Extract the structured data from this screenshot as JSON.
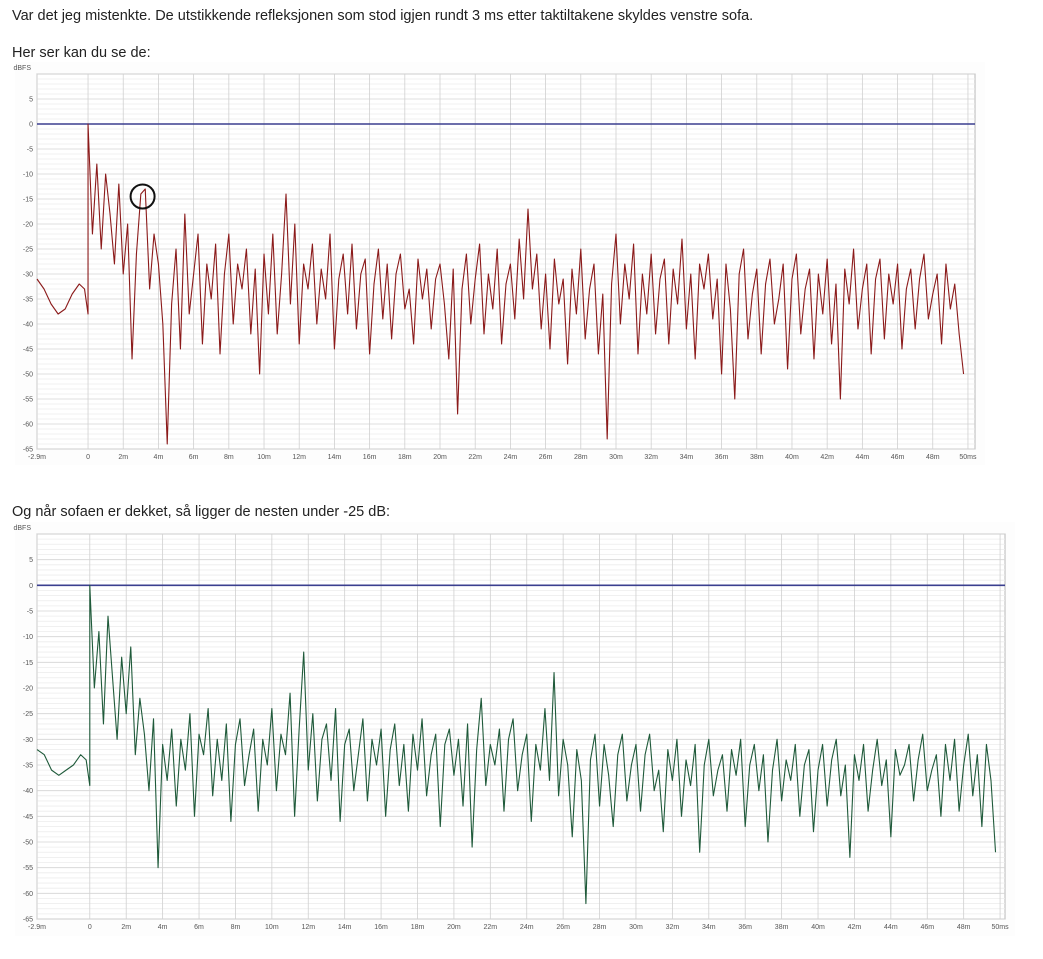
{
  "post": {
    "line1": "Var det jeg mistenkte. De utstikkende refleksjonen som stod igjen rundt 3 ms etter taktiltakene skyldes venstre sofa.",
    "line2": "Her ser kan du se de:",
    "line3": "Og når sofaen er dekket, så ligger de nesten under -25 dB:"
  },
  "chart_data": [
    {
      "type": "line",
      "title": "",
      "ylabel": "dBFS",
      "xlabel": "",
      "xlim": [
        -2.9,
        50.4
      ],
      "ylim": [
        -65,
        10
      ],
      "grid": true,
      "x_tick_labels": [
        "-2.9m",
        "0",
        "2m",
        "4m",
        "6m",
        "8m",
        "10m",
        "12m",
        "14m",
        "16m",
        "18m",
        "20m",
        "22m",
        "24m",
        "26m",
        "28m",
        "30m",
        "32m",
        "34m",
        "36m",
        "38m",
        "40m",
        "42m",
        "44m",
        "46m",
        "48m",
        "50ms"
      ],
      "y_ticks": [
        5,
        0,
        -5,
        -10,
        -15,
        -20,
        -25,
        -30,
        -35,
        -40,
        -45,
        -50,
        -55,
        -60,
        -65
      ],
      "reference_line": 0,
      "reference_color": "#3b3f8f",
      "series_color": "#8b1a1a",
      "annotation": {
        "type": "circle",
        "x": 3.1,
        "y": -14.5
      },
      "pre": {
        "x": [
          -2.9,
          -2.5,
          -2.1,
          -1.7,
          -1.3,
          -0.9,
          -0.5,
          -0.2,
          0
        ],
        "y": [
          -31,
          -33,
          -36,
          -38,
          -37,
          -34,
          -32,
          -33,
          -38
        ]
      },
      "x_start": 0,
      "x_step": 0.25,
      "y": [
        0,
        -22,
        -8,
        -25,
        -10,
        -18,
        -28,
        -12,
        -30,
        -20,
        -47,
        -26,
        -14,
        -13,
        -33,
        -22,
        -28,
        -40,
        -64,
        -36,
        -25,
        -45,
        -18,
        -38,
        -30,
        -22,
        -44,
        -28,
        -35,
        -24,
        -46,
        -30,
        -22,
        -40,
        -28,
        -33,
        -25,
        -42,
        -29,
        -50,
        -26,
        -38,
        -22,
        -42,
        -30,
        -14,
        -36,
        -20,
        -44,
        -28,
        -33,
        -24,
        -40,
        -29,
        -35,
        -22,
        -45,
        -31,
        -26,
        -38,
        -24,
        -41,
        -30,
        -27,
        -46,
        -32,
        -25,
        -39,
        -28,
        -43,
        -30,
        -26,
        -37,
        -33,
        -44,
        -27,
        -35,
        -29,
        -41,
        -31,
        -28,
        -36,
        -47,
        -29,
        -58,
        -33,
        -26,
        -40,
        -31,
        -24,
        -42,
        -30,
        -37,
        -25,
        -44,
        -32,
        -28,
        -39,
        -23,
        -35,
        -17,
        -33,
        -26,
        -41,
        -30,
        -45,
        -27,
        -36,
        -31,
        -48,
        -29,
        -38,
        -25,
        -43,
        -33,
        -28,
        -46,
        -34,
        -63,
        -32,
        -22,
        -40,
        -28,
        -35,
        -24,
        -46,
        -30,
        -38,
        -26,
        -42,
        -31,
        -27,
        -44,
        -29,
        -36,
        -23,
        -41,
        -30,
        -47,
        -28,
        -33,
        -26,
        -39,
        -31,
        -50,
        -28,
        -37,
        -55,
        -30,
        -25,
        -43,
        -34,
        -29,
        -46,
        -32,
        -27,
        -40,
        -35,
        -28,
        -49,
        -31,
        -26,
        -42,
        -33,
        -29,
        -47,
        -30,
        -38,
        -27,
        -44,
        -32,
        -55,
        -29,
        -36,
        -25,
        -41,
        -33,
        -28,
        -46,
        -31,
        -27,
        -43,
        -30,
        -36,
        -28,
        -45,
        -33,
        -29,
        -41,
        -31,
        -26,
        -39,
        -34,
        -30,
        -44,
        -28,
        -37,
        -32,
        -42,
        -50
      ]
    },
    {
      "type": "line",
      "title": "",
      "ylabel": "dBFS",
      "xlabel": "",
      "xlim": [
        -2.9,
        50.27
      ],
      "ylim": [
        -65,
        10
      ],
      "grid": true,
      "x_tick_labels": [
        "-2.9m",
        "0",
        "2m",
        "4m",
        "6m",
        "8m",
        "10m",
        "12m",
        "14m",
        "16m",
        "18m",
        "20m",
        "22m",
        "24m",
        "26m",
        "28m",
        "30m",
        "32m",
        "34m",
        "36m",
        "38m",
        "40m",
        "42m",
        "44m",
        "46m",
        "48m",
        "50ms"
      ],
      "y_ticks": [
        5,
        0,
        -5,
        -10,
        -15,
        -20,
        -25,
        -30,
        -35,
        -40,
        -45,
        -50,
        -55,
        -60,
        -65
      ],
      "reference_line": 0,
      "reference_color": "#3b3f8f",
      "series_color": "#1f5a3a",
      "pre": {
        "x": [
          -2.9,
          -2.5,
          -2.1,
          -1.7,
          -1.3,
          -0.9,
          -0.5,
          -0.2,
          0
        ],
        "y": [
          -32,
          -33,
          -36,
          -37,
          -36,
          -35,
          -33,
          -34,
          -39
        ]
      },
      "x_start": 0,
      "x_step": 0.25,
      "y": [
        0,
        -20,
        -9,
        -27,
        -6,
        -18,
        -30,
        -14,
        -25,
        -12,
        -33,
        -22,
        -29,
        -40,
        -26,
        -55,
        -31,
        -38,
        -28,
        -43,
        -30,
        -36,
        -25,
        -45,
        -29,
        -33,
        -24,
        -41,
        -30,
        -38,
        -27,
        -46,
        -31,
        -26,
        -39,
        -33,
        -28,
        -44,
        -30,
        -35,
        -24,
        -40,
        -29,
        -33,
        -21,
        -45,
        -28,
        -13,
        -36,
        -25,
        -42,
        -30,
        -27,
        -38,
        -24,
        -46,
        -31,
        -28,
        -40,
        -33,
        -26,
        -42,
        -30,
        -35,
        -28,
        -45,
        -32,
        -27,
        -39,
        -31,
        -44,
        -29,
        -36,
        -26,
        -41,
        -33,
        -29,
        -47,
        -31,
        -28,
        -37,
        -30,
        -43,
        -27,
        -51,
        -32,
        -22,
        -39,
        -31,
        -35,
        -28,
        -44,
        -30,
        -26,
        -40,
        -33,
        -29,
        -46,
        -31,
        -36,
        -24,
        -38,
        -17,
        -41,
        -30,
        -35,
        -49,
        -32,
        -38,
        -62,
        -34,
        -29,
        -43,
        -31,
        -37,
        -47,
        -33,
        -29,
        -42,
        -35,
        -31,
        -44,
        -33,
        -29,
        -40,
        -36,
        -48,
        -32,
        -38,
        -30,
        -45,
        -34,
        -39,
        -31,
        -52,
        -35,
        -30,
        -41,
        -36,
        -33,
        -44,
        -32,
        -37,
        -30,
        -47,
        -35,
        -31,
        -40,
        -33,
        -50,
        -36,
        -30,
        -42,
        -34,
        -38,
        -31,
        -45,
        -35,
        -32,
        -48,
        -36,
        -31,
        -43,
        -34,
        -30,
        -41,
        -35,
        -53,
        -33,
        -38,
        -31,
        -44,
        -36,
        -30,
        -39,
        -34,
        -49,
        -32,
        -37,
        -35,
        -31,
        -42,
        -34,
        -29,
        -40,
        -36,
        -33,
        -45,
        -31,
        -38,
        -30,
        -44,
        -35,
        -29,
        -41,
        -33,
        -47,
        -31,
        -38,
        -52
      ]
    }
  ]
}
